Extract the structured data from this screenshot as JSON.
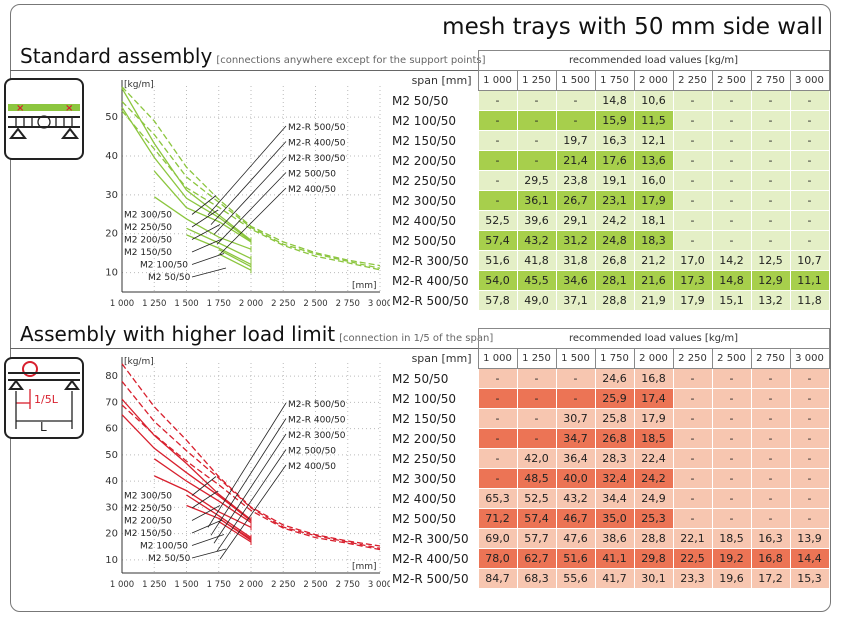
{
  "title": "mesh trays with 50 mm side wall",
  "span_label": "span [mm]",
  "table_caption": "recommended load values [kg/m]",
  "spans": [
    "1 000",
    "1 250",
    "1 500",
    "1 750",
    "2 000",
    "2 250",
    "2 500",
    "2 750",
    "3 000"
  ],
  "colors": {
    "green_light": "#e4efc6",
    "green_dark": "#a7cf4c",
    "green_line": "#8cc63f",
    "red_light": "#f7c6b0",
    "red_dark": "#ec7455",
    "red_line": "#d8202e"
  },
  "sections": [
    {
      "title": "Standard assembly",
      "subtitle": "[connections anywhere except for the support points]",
      "rows": [
        {
          "label": "M2 50/50",
          "values": [
            "-",
            "-",
            "-",
            "14,8",
            "10,6",
            "-",
            "-",
            "-",
            "-"
          ]
        },
        {
          "label": "M2 100/50",
          "values": [
            "-",
            "-",
            "-",
            "15,9",
            "11,5",
            "-",
            "-",
            "-",
            "-"
          ]
        },
        {
          "label": "M2 150/50",
          "values": [
            "-",
            "-",
            "19,7",
            "16,3",
            "12,1",
            "-",
            "-",
            "-",
            "-"
          ]
        },
        {
          "label": "M2 200/50",
          "values": [
            "-",
            "-",
            "21,4",
            "17,6",
            "13,6",
            "-",
            "-",
            "-",
            "-"
          ]
        },
        {
          "label": "M2 250/50",
          "values": [
            "-",
            "29,5",
            "23,8",
            "19,1",
            "16,0",
            "-",
            "-",
            "-",
            "-"
          ]
        },
        {
          "label": "M2 300/50",
          "values": [
            "-",
            "36,1",
            "26,7",
            "23,1",
            "17,9",
            "-",
            "-",
            "-",
            "-"
          ]
        },
        {
          "label": "M2 400/50",
          "values": [
            "52,5",
            "39,6",
            "29,1",
            "24,2",
            "18,1",
            "-",
            "-",
            "-",
            "-"
          ]
        },
        {
          "label": "M2 500/50",
          "values": [
            "57,4",
            "43,2",
            "31,2",
            "24,8",
            "18,3",
            "-",
            "-",
            "-",
            "-"
          ]
        },
        {
          "label": "M2-R 300/50",
          "values": [
            "51,6",
            "41,8",
            "31,8",
            "26,8",
            "21,2",
            "17,0",
            "14,2",
            "12,5",
            "10,7"
          ]
        },
        {
          "label": "M2-R 400/50",
          "values": [
            "54,0",
            "45,5",
            "34,6",
            "28,1",
            "21,6",
            "17,3",
            "14,8",
            "12,9",
            "11,1"
          ]
        },
        {
          "label": "M2-R 500/50",
          "values": [
            "57,8",
            "49,0",
            "37,1",
            "28,8",
            "21,9",
            "17,9",
            "15,1",
            "13,2",
            "11,8"
          ]
        }
      ]
    },
    {
      "title": "Assembly with higher load limit",
      "subtitle": "[connection in 1/5 of the span]",
      "rows": [
        {
          "label": "M2 50/50",
          "values": [
            "-",
            "-",
            "-",
            "24,6",
            "16,8",
            "-",
            "-",
            "-",
            "-"
          ]
        },
        {
          "label": "M2 100/50",
          "values": [
            "-",
            "-",
            "-",
            "25,9",
            "17,4",
            "-",
            "-",
            "-",
            "-"
          ]
        },
        {
          "label": "M2 150/50",
          "values": [
            "-",
            "-",
            "30,7",
            "25,8",
            "17,9",
            "-",
            "-",
            "-",
            "-"
          ]
        },
        {
          "label": "M2 200/50",
          "values": [
            "-",
            "-",
            "34,7",
            "26,8",
            "18,5",
            "-",
            "-",
            "-",
            "-"
          ]
        },
        {
          "label": "M2 250/50",
          "values": [
            "-",
            "42,0",
            "36,4",
            "28,3",
            "22,4",
            "-",
            "-",
            "-",
            "-"
          ]
        },
        {
          "label": "M2 300/50",
          "values": [
            "-",
            "48,5",
            "40,0",
            "32,4",
            "24,2",
            "-",
            "-",
            "-",
            "-"
          ]
        },
        {
          "label": "M2 400/50",
          "values": [
            "65,3",
            "52,5",
            "43,2",
            "34,4",
            "24,9",
            "-",
            "-",
            "-",
            "-"
          ]
        },
        {
          "label": "M2 500/50",
          "values": [
            "71,2",
            "57,4",
            "46,7",
            "35,0",
            "25,3",
            "-",
            "-",
            "-",
            "-"
          ]
        },
        {
          "label": "M2-R 300/50",
          "values": [
            "69,0",
            "57,7",
            "47,6",
            "38,6",
            "28,8",
            "22,1",
            "18,5",
            "16,3",
            "13,9"
          ]
        },
        {
          "label": "M2-R 400/50",
          "values": [
            "78,0",
            "62,7",
            "51,6",
            "41,1",
            "29,8",
            "22,5",
            "19,2",
            "16,8",
            "14,4"
          ]
        },
        {
          "label": "M2-R 500/50",
          "values": [
            "84,7",
            "68,3",
            "55,6",
            "41,7",
            "30,1",
            "23,3",
            "19,6",
            "17,2",
            "15,3"
          ]
        }
      ]
    }
  ],
  "chart_data": [
    {
      "type": "line",
      "ylabel": "[kg/m]",
      "xlabel": "[mm]",
      "x": [
        1000,
        1250,
        1500,
        1750,
        2000,
        2250,
        2500,
        2750,
        3000
      ],
      "xticks": [
        "1 000",
        "1 250",
        "1 500",
        "1 750",
        "2 000",
        "2 250",
        "2 500",
        "2 750",
        "3 000"
      ],
      "ylim": [
        5,
        58
      ],
      "yticks": [
        10,
        20,
        30,
        40,
        50
      ],
      "grid": true,
      "labels_right": [
        "M2-R 500/50",
        "M2-R 400/50",
        "M2-R 300/50",
        "M2 500/50",
        "M2 400/50"
      ],
      "labels_left": [
        "M2 300/50",
        "M2 250/50",
        "M2 200/50",
        "M2 150/50",
        "M2 100/50",
        "M2 50/50"
      ],
      "series": [
        {
          "name": "M2 50/50",
          "dashed": false,
          "values": [
            null,
            null,
            null,
            14.8,
            10.6,
            null,
            null,
            null,
            null
          ]
        },
        {
          "name": "M2 100/50",
          "dashed": false,
          "values": [
            null,
            null,
            null,
            15.9,
            11.5,
            null,
            null,
            null,
            null
          ]
        },
        {
          "name": "M2 150/50",
          "dashed": false,
          "values": [
            null,
            null,
            19.7,
            16.3,
            12.1,
            null,
            null,
            null,
            null
          ]
        },
        {
          "name": "M2 200/50",
          "dashed": false,
          "values": [
            null,
            null,
            21.4,
            17.6,
            13.6,
            null,
            null,
            null,
            null
          ]
        },
        {
          "name": "M2 250/50",
          "dashed": false,
          "values": [
            null,
            29.5,
            23.8,
            19.1,
            16.0,
            null,
            null,
            null,
            null
          ]
        },
        {
          "name": "M2 300/50",
          "dashed": false,
          "values": [
            null,
            36.1,
            26.7,
            23.1,
            17.9,
            null,
            null,
            null,
            null
          ]
        },
        {
          "name": "M2 400/50",
          "dashed": false,
          "values": [
            52.5,
            39.6,
            29.1,
            24.2,
            18.1,
            null,
            null,
            null,
            null
          ]
        },
        {
          "name": "M2 500/50",
          "dashed": false,
          "values": [
            57.4,
            43.2,
            31.2,
            24.8,
            18.3,
            null,
            null,
            null,
            null
          ]
        },
        {
          "name": "M2-R 300/50",
          "dashed": true,
          "values": [
            51.6,
            41.8,
            31.8,
            26.8,
            21.2,
            17.0,
            14.2,
            12.5,
            10.7
          ]
        },
        {
          "name": "M2-R 400/50",
          "dashed": true,
          "values": [
            54.0,
            45.5,
            34.6,
            28.1,
            21.6,
            17.3,
            14.8,
            12.9,
            11.1
          ]
        },
        {
          "name": "M2-R 500/50",
          "dashed": true,
          "values": [
            57.8,
            49.0,
            37.1,
            28.8,
            21.9,
            17.9,
            15.1,
            13.2,
            11.8
          ]
        }
      ]
    },
    {
      "type": "line",
      "ylabel": "[kg/m]",
      "xlabel": "[mm]",
      "x": [
        1000,
        1250,
        1500,
        1750,
        2000,
        2250,
        2500,
        2750,
        3000
      ],
      "xticks": [
        "1 000",
        "1 250",
        "1 500",
        "1 750",
        "2 000",
        "2 250",
        "2 500",
        "2 750",
        "3 000"
      ],
      "ylim": [
        5,
        85
      ],
      "yticks": [
        10,
        20,
        30,
        40,
        50,
        60,
        70,
        80
      ],
      "grid": true,
      "labels_right": [
        "M2-R 500/50",
        "M2-R 400/50",
        "M2-R 300/50",
        "M2 500/50",
        "M2 400/50"
      ],
      "labels_left": [
        "M2 300/50",
        "M2 250/50",
        "M2 200/50",
        "M2 150/50",
        "M2 100/50",
        "M2 50/50"
      ],
      "series": [
        {
          "name": "M2 50/50",
          "dashed": false,
          "values": [
            null,
            null,
            null,
            24.6,
            16.8,
            null,
            null,
            null,
            null
          ]
        },
        {
          "name": "M2 100/50",
          "dashed": false,
          "values": [
            null,
            null,
            null,
            25.9,
            17.4,
            null,
            null,
            null,
            null
          ]
        },
        {
          "name": "M2 150/50",
          "dashed": false,
          "values": [
            null,
            null,
            30.7,
            25.8,
            17.9,
            null,
            null,
            null,
            null
          ]
        },
        {
          "name": "M2 200/50",
          "dashed": false,
          "values": [
            null,
            null,
            34.7,
            26.8,
            18.5,
            null,
            null,
            null,
            null
          ]
        },
        {
          "name": "M2 250/50",
          "dashed": false,
          "values": [
            null,
            42.0,
            36.4,
            28.3,
            22.4,
            null,
            null,
            null,
            null
          ]
        },
        {
          "name": "M2 300/50",
          "dashed": false,
          "values": [
            null,
            48.5,
            40.0,
            32.4,
            24.2,
            null,
            null,
            null,
            null
          ]
        },
        {
          "name": "M2 400/50",
          "dashed": false,
          "values": [
            65.3,
            52.5,
            43.2,
            34.4,
            24.9,
            null,
            null,
            null,
            null
          ]
        },
        {
          "name": "M2 500/50",
          "dashed": false,
          "values": [
            71.2,
            57.4,
            46.7,
            35.0,
            25.3,
            null,
            null,
            null,
            null
          ]
        },
        {
          "name": "M2-R 300/50",
          "dashed": true,
          "values": [
            69.0,
            57.7,
            47.6,
            38.6,
            28.8,
            22.1,
            18.5,
            16.3,
            13.9
          ]
        },
        {
          "name": "M2-R 400/50",
          "dashed": true,
          "values": [
            78.0,
            62.7,
            51.6,
            41.1,
            29.8,
            22.5,
            19.2,
            16.8,
            14.4
          ]
        },
        {
          "name": "M2-R 500/50",
          "dashed": true,
          "values": [
            84.7,
            68.3,
            55.6,
            41.7,
            30.1,
            23.3,
            19.6,
            17.2,
            15.3
          ]
        }
      ]
    }
  ],
  "icon_labels": {
    "span_fraction": "1/5L",
    "span": "L"
  }
}
